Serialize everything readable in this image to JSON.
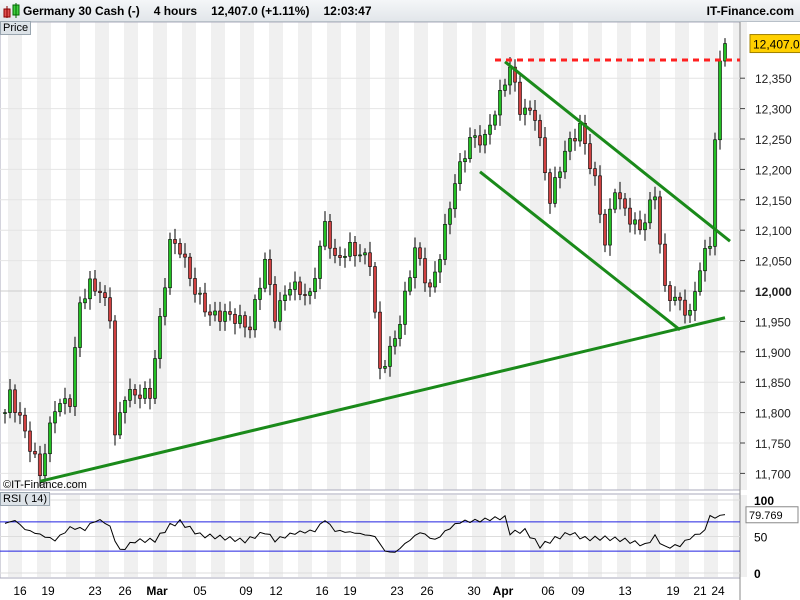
{
  "header": {
    "instrument": "Germany 30 Cash (-)",
    "timeframe": "4 hours",
    "price": "12,407.0 (+1.11%)",
    "time": "12:03:47",
    "brand": "IT-Finance.com"
  },
  "price_panel_label": "Price",
  "rsi_panel_label": "RSI ( 14)",
  "watermark": "©IT-Finance.com",
  "colors": {
    "up": "#22c022",
    "down": "#d04040",
    "trendline": "#1a8a1a",
    "resistance": "#ff2020",
    "rsi_band": "#2020e0",
    "last_price_bg": "#ffd000"
  },
  "chart_data": [
    {
      "type": "candlestick",
      "title": "Germany 30 Cash (-) 4 hours",
      "ylim": [
        11680,
        12440
      ],
      "yticks": [
        "12,350",
        "12,300",
        "12,250",
        "12,200",
        "12,150",
        "12,100",
        "12,050",
        "12,000",
        "11,950",
        "11,900",
        "11,850",
        "11,800",
        "11,750",
        "11,700"
      ],
      "ytick_values": [
        12350,
        12300,
        12250,
        12200,
        12150,
        12100,
        12050,
        12000,
        11950,
        11900,
        11850,
        11800,
        11750,
        11700
      ],
      "last_price": "12,407.0",
      "last_value": 12407,
      "xticks": [
        "16",
        "19",
        "23",
        "26",
        "Mar",
        "05",
        "09",
        "12",
        "16",
        "19",
        "23",
        "26",
        "30",
        "Apr",
        "06",
        "09",
        "13",
        "19",
        "21",
        "24"
      ],
      "price_path_by_candle": [
        [
          0,
          11800
        ],
        [
          1,
          11830
        ],
        [
          3,
          11790
        ],
        [
          7,
          11700
        ],
        [
          10,
          11810
        ],
        [
          13,
          11820
        ],
        [
          15,
          11980
        ],
        [
          17,
          12010
        ],
        [
          19,
          12000
        ],
        [
          21,
          11960
        ],
        [
          22,
          11760
        ],
        [
          24,
          11830
        ],
        [
          29,
          11830
        ],
        [
          31,
          11950
        ],
        [
          33,
          12080
        ],
        [
          35,
          12070
        ],
        [
          38,
          12000
        ],
        [
          41,
          11960
        ],
        [
          45,
          11960
        ],
        [
          49,
          11940
        ],
        [
          52,
          12050
        ],
        [
          54,
          11960
        ],
        [
          57,
          12010
        ],
        [
          61,
          11990
        ],
        [
          64,
          12110
        ],
        [
          66,
          12050
        ],
        [
          69,
          12070
        ],
        [
          73,
          12050
        ],
        [
          75,
          11870
        ],
        [
          77,
          11900
        ],
        [
          79,
          11950
        ],
        [
          82,
          12070
        ],
        [
          85,
          12000
        ],
        [
          87,
          12060
        ],
        [
          90,
          12180
        ],
        [
          93,
          12250
        ],
        [
          96,
          12250
        ],
        [
          99,
          12320
        ],
        [
          101,
          12370
        ],
        [
          103,
          12300
        ],
        [
          106,
          12290
        ],
        [
          109,
          12150
        ],
        [
          112,
          12230
        ],
        [
          115,
          12270
        ],
        [
          118,
          12180
        ],
        [
          120,
          12080
        ],
        [
          122,
          12170
        ],
        [
          124,
          12130
        ],
        [
          127,
          12100
        ],
        [
          130,
          12160
        ],
        [
          132,
          12000
        ],
        [
          135,
          11980
        ],
        [
          137,
          11960
        ],
        [
          139,
          12040
        ],
        [
          141,
          12080
        ],
        [
          142,
          12250
        ],
        [
          143,
          12370
        ],
        [
          144,
          12407
        ]
      ],
      "trendlines": [
        {
          "from": [
            7,
            11687
          ],
          "to": [
            144,
            11956
          ]
        },
        {
          "from": [
            95,
            12196
          ],
          "to": [
            135,
            11936
          ]
        },
        {
          "from": [
            100,
            12377
          ],
          "to": [
            145,
            12082
          ]
        }
      ],
      "resistance": {
        "value": 12380,
        "from": 98
      }
    },
    {
      "type": "line",
      "title": "RSI ( 14)",
      "ylim": [
        0,
        100
      ],
      "yticks": [
        "100",
        "50",
        "0"
      ],
      "bands": [
        70,
        30
      ],
      "last_value": "79.769",
      "path_by_candle": [
        [
          0,
          68
        ],
        [
          2,
          72
        ],
        [
          4,
          60
        ],
        [
          8,
          50
        ],
        [
          10,
          45
        ],
        [
          13,
          62
        ],
        [
          16,
          60
        ],
        [
          18,
          72
        ],
        [
          20,
          70
        ],
        [
          21,
          62
        ],
        [
          23,
          30
        ],
        [
          26,
          44
        ],
        [
          30,
          45
        ],
        [
          33,
          65
        ],
        [
          35,
          70
        ],
        [
          39,
          52
        ],
        [
          44,
          48
        ],
        [
          48,
          44
        ],
        [
          52,
          56
        ],
        [
          54,
          45
        ],
        [
          58,
          55
        ],
        [
          62,
          58
        ],
        [
          64,
          73
        ],
        [
          66,
          58
        ],
        [
          70,
          55
        ],
        [
          74,
          50
        ],
        [
          76,
          30
        ],
        [
          78,
          28
        ],
        [
          80,
          40
        ],
        [
          83,
          56
        ],
        [
          86,
          45
        ],
        [
          89,
          62
        ],
        [
          91,
          70
        ],
        [
          95,
          72
        ],
        [
          97,
          74
        ],
        [
          100,
          76
        ],
        [
          101,
          55
        ],
        [
          104,
          58
        ],
        [
          107,
          37
        ],
        [
          110,
          47
        ],
        [
          113,
          55
        ],
        [
          116,
          47
        ],
        [
          120,
          48
        ],
        [
          124,
          45
        ],
        [
          128,
          38
        ],
        [
          130,
          50
        ],
        [
          132,
          35
        ],
        [
          135,
          38
        ],
        [
          137,
          48
        ],
        [
          140,
          58
        ],
        [
          141,
          80
        ],
        [
          142,
          74
        ],
        [
          143,
          80
        ]
      ]
    }
  ]
}
